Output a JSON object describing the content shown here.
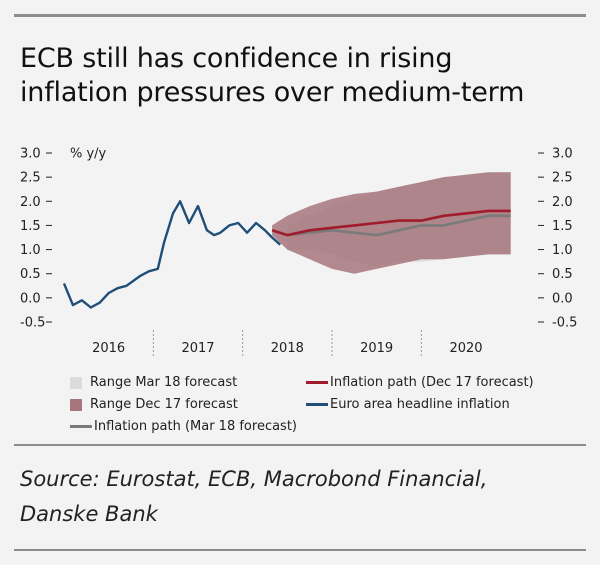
{
  "title_lines": [
    "ECB still has confidence in rising",
    "inflation pressures over medium-term"
  ],
  "source_lines": [
    "Source: Eurostat, ECB, Macrobond Financial,",
    "Danske Bank"
  ],
  "colors": {
    "headline": "#1f4e79",
    "dec17_path": "#a01c2c",
    "mar18_path": "#7a7a7a",
    "dec17_range": "#a6757d",
    "mar18_range": "#dcdcdc"
  },
  "chart_data": {
    "type": "line",
    "title": "",
    "ylabel": "% y/y",
    "ylim": [
      -0.5,
      3.0
    ],
    "xlim": [
      2015.5,
      2020.75
    ],
    "y_ticks": [
      "3.0",
      "2.5",
      "2.0",
      "1.5",
      "1.0",
      "0.5",
      "0.0",
      "-0.5"
    ],
    "x_ticks": [
      "2016",
      "2017",
      "2018",
      "2019",
      "2020"
    ],
    "legend": [
      {
        "label": "Range Mar 18 forecast",
        "kind": "area",
        "color": "#dcdcdc"
      },
      {
        "label": "Inflation path (Dec 17 forecast)",
        "kind": "line",
        "color": "#a01c2c"
      },
      {
        "label": "Range Dec 17 forecast",
        "kind": "area",
        "color": "#a6757d"
      },
      {
        "label": "Euro area headline inflation",
        "kind": "line",
        "color": "#1f4e79"
      },
      {
        "label": "Inflation path (Mar 18 forecast)",
        "kind": "line",
        "color": "#7a7a7a"
      }
    ],
    "series": [
      {
        "name": "Euro area headline inflation",
        "x": [
          2015.5,
          2015.6,
          2015.7,
          2015.8,
          2015.9,
          2016.0,
          2016.1,
          2016.2,
          2016.35,
          2016.45,
          2016.55,
          2016.62,
          2016.72,
          2016.8,
          2016.9,
          2017.0,
          2017.1,
          2017.18,
          2017.25,
          2017.35,
          2017.45,
          2017.55,
          2017.65,
          2017.75,
          2017.83,
          2017.92
        ],
        "y": [
          0.3,
          -0.15,
          -0.05,
          -0.2,
          -0.1,
          0.1,
          0.2,
          0.25,
          0.45,
          0.55,
          0.6,
          1.15,
          1.75,
          2.0,
          1.55,
          1.9,
          1.4,
          1.3,
          1.35,
          1.5,
          1.55,
          1.35,
          1.55,
          1.4,
          1.25,
          1.1
        ]
      },
      {
        "name": "Inflation path (Dec 17 forecast)",
        "x": [
          2017.83,
          2018.0,
          2018.25,
          2018.5,
          2018.75,
          2019.0,
          2019.25,
          2019.5,
          2019.75,
          2020.0,
          2020.25,
          2020.5
        ],
        "y": [
          1.4,
          1.3,
          1.4,
          1.45,
          1.5,
          1.55,
          1.6,
          1.6,
          1.7,
          1.75,
          1.8,
          1.8
        ]
      },
      {
        "name": "Inflation path (Mar 18 forecast)",
        "x": [
          2018.0,
          2018.25,
          2018.5,
          2018.75,
          2019.0,
          2019.25,
          2019.5,
          2019.75,
          2020.0,
          2020.25,
          2020.5
        ],
        "y": [
          1.3,
          1.35,
          1.4,
          1.35,
          1.3,
          1.4,
          1.5,
          1.5,
          1.6,
          1.7,
          1.7
        ]
      },
      {
        "name": "Range Dec 17 forecast",
        "x": [
          2017.83,
          2018.0,
          2018.25,
          2018.5,
          2018.75,
          2019.0,
          2019.25,
          2019.5,
          2019.75,
          2020.0,
          2020.25,
          2020.5
        ],
        "low": [
          1.3,
          1.0,
          0.8,
          0.6,
          0.5,
          0.6,
          0.7,
          0.8,
          0.8,
          0.85,
          0.9,
          0.9
        ],
        "high": [
          1.5,
          1.7,
          1.9,
          2.05,
          2.15,
          2.2,
          2.3,
          2.4,
          2.5,
          2.55,
          2.6,
          2.6
        ]
      },
      {
        "name": "Range Mar 18 forecast",
        "x": [
          2018.0,
          2018.25,
          2018.5,
          2018.75,
          2019.0,
          2019.25,
          2019.5,
          2019.75,
          2020.0,
          2020.25,
          2020.5
        ],
        "low": [
          1.0,
          1.0,
          0.9,
          0.75,
          0.65,
          0.75,
          0.75,
          0.8,
          0.85,
          0.9,
          0.9
        ],
        "high": [
          1.5,
          1.7,
          1.9,
          2.05,
          2.2,
          2.3,
          2.4,
          2.5,
          2.55,
          2.6,
          2.6
        ]
      }
    ]
  }
}
